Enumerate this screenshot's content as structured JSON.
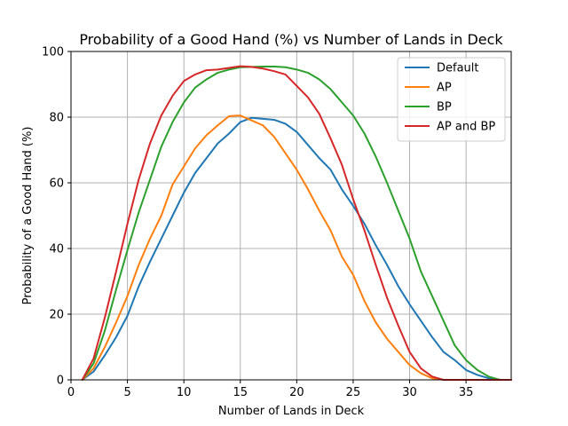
{
  "chart_data": {
    "type": "line",
    "title": "Probability of a Good Hand (%) vs Number of Lands in Deck",
    "xlabel": "Number of Lands in Deck",
    "ylabel": "Probability of a Good Hand (%)",
    "xlim": [
      0,
      39
    ],
    "ylim": [
      0,
      100
    ],
    "xticks": [
      0,
      5,
      10,
      15,
      20,
      25,
      30,
      35
    ],
    "yticks": [
      0,
      20,
      40,
      60,
      80,
      100
    ],
    "grid": true,
    "legend_position": "top-right",
    "x": [
      1,
      2,
      3,
      4,
      5,
      6,
      7,
      8,
      9,
      10,
      11,
      12,
      13,
      14,
      15,
      16,
      17,
      18,
      19,
      20,
      21,
      22,
      23,
      24,
      25,
      26,
      27,
      28,
      29,
      30,
      31,
      32,
      33,
      34,
      35,
      36,
      37,
      38,
      39
    ],
    "series": [
      {
        "name": "Default",
        "color": "#1f77b4",
        "values": [
          0,
          2.5,
          7.5,
          13,
          19.5,
          28.5,
          36,
          43,
          50,
          57,
          63,
          67.5,
          72,
          75,
          78.5,
          79.8,
          79.5,
          79.2,
          78,
          75.5,
          71.5,
          67.5,
          64,
          58,
          53,
          47.5,
          41,
          35,
          28.5,
          23,
          18,
          13,
          8.5,
          6,
          3,
          1.5,
          0.5,
          0,
          0
        ]
      },
      {
        "name": "AP",
        "color": "#ff7f0e",
        "values": [
          0,
          3.5,
          10,
          17.5,
          25.5,
          35,
          43,
          50,
          59.5,
          65,
          70.5,
          74.5,
          77.5,
          80.3,
          80.5,
          79,
          77.5,
          74,
          69,
          64,
          58,
          51.5,
          45.5,
          37.5,
          32,
          24,
          17.5,
          12.5,
          8.5,
          4.5,
          2,
          0.5,
          0,
          0,
          0,
          0,
          0,
          0,
          0
        ]
      },
      {
        "name": "BP",
        "color": "#2ca02c",
        "values": [
          0,
          5,
          15,
          27.5,
          39.5,
          51,
          61,
          71,
          78.5,
          84.5,
          89,
          91.5,
          93.5,
          94.5,
          95.2,
          95.3,
          95.4,
          95.4,
          95.2,
          94.5,
          93.5,
          91.5,
          88.5,
          84.5,
          80.5,
          75,
          68,
          60,
          51.5,
          43,
          33,
          25.5,
          18,
          10.5,
          6,
          3,
          1,
          0,
          0
        ]
      },
      {
        "name": "AP and BP",
        "color": "#d62728",
        "values": [
          0,
          6.5,
          19,
          33,
          47.5,
          61,
          72,
          80.5,
          86.5,
          91,
          93,
          94.3,
          94.5,
          95,
          95.5,
          95.3,
          94.8,
          94,
          93,
          89.5,
          86,
          81,
          73.5,
          65.5,
          55,
          45.5,
          35,
          25,
          16.5,
          8.5,
          3.5,
          1,
          0,
          0,
          0,
          0,
          0,
          0,
          0
        ]
      }
    ]
  }
}
